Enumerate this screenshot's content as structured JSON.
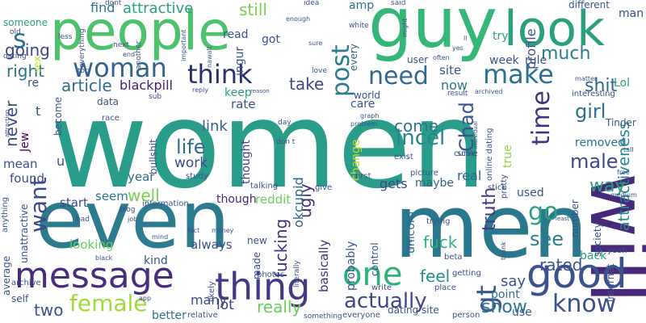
{
  "background": "#ffffff",
  "palette": {
    "purple": "#440154",
    "indigo": "#3b528b",
    "teal": "#21908d",
    "green": "#35b779",
    "lime": "#8fd744",
    "yellow": "#fde725"
  },
  "words": [
    {
      "text": "women",
      "weight": 100,
      "color": "#2a9d8a"
    },
    {
      "text": "men",
      "weight": 62,
      "color": "#2a788e"
    },
    {
      "text": "even",
      "weight": 45,
      "color": "#2c7b8e"
    },
    {
      "text": "guy",
      "weight": 36,
      "color": "#35b779"
    },
    {
      "text": "people",
      "weight": 33,
      "color": "#4cc26c"
    },
    {
      "text": "will",
      "weight": 30,
      "color": "#482878"
    },
    {
      "text": "look",
      "weight": 28,
      "color": "#2ba07f"
    },
    {
      "text": "good",
      "weight": 25,
      "color": "#3b528b"
    },
    {
      "text": "message",
      "weight": 22,
      "color": "#472d7b"
    },
    {
      "text": "thing",
      "weight": 22,
      "color": "#443983"
    },
    {
      "text": "one",
      "weight": 18,
      "color": "#2db37a"
    },
    {
      "text": "woman",
      "weight": 16,
      "color": "#33638d"
    },
    {
      "text": "think",
      "weight": 15,
      "color": "#2a2f6e"
    },
    {
      "text": "make",
      "weight": 13,
      "color": "#2c728e"
    },
    {
      "text": "need",
      "weight": 12,
      "color": "#31688e"
    },
    {
      "text": "post",
      "weight": 12,
      "color": "#287d8e"
    },
    {
      "text": "time",
      "weight": 11,
      "color": "#46327e"
    },
    {
      "text": "want",
      "weight": 11,
      "color": "#3e4a89"
    },
    {
      "text": "know",
      "weight": 11,
      "color": "#3b518b"
    },
    {
      "text": "female",
      "weight": 10,
      "color": "#a0da39"
    },
    {
      "text": "gt",
      "weight": 10,
      "color": "#39568c"
    },
    {
      "text": "go",
      "weight": 9,
      "color": "#2ba07f"
    },
    {
      "text": "actually",
      "weight": 9,
      "color": "#3f4788"
    },
    {
      "text": "incel",
      "weight": 8,
      "color": "#24868e"
    },
    {
      "text": "Chad",
      "weight": 8,
      "color": "#3b528b"
    },
    {
      "text": "life",
      "weight": 8,
      "color": "#2f6b8e"
    },
    {
      "text": "much",
      "weight": 7,
      "color": "#27808e"
    },
    {
      "text": "see",
      "weight": 7,
      "color": "#26828e"
    },
    {
      "text": "girl",
      "weight": 7,
      "color": "#2c728e"
    },
    {
      "text": "male",
      "weight": 7,
      "color": "#3e4989"
    },
    {
      "text": "shit",
      "weight": 7,
      "color": "#31688e"
    },
    {
      "text": "show",
      "weight": 7,
      "color": "#2a768e"
    },
    {
      "text": "s",
      "weight": 7,
      "color": "#2c728e"
    },
    {
      "text": "truth",
      "weight": 6,
      "color": "#443983"
    },
    {
      "text": "attractiveness",
      "weight": 6,
      "color": "#24878e"
    },
    {
      "text": "fucking",
      "weight": 6,
      "color": "#46327e"
    },
    {
      "text": "feel",
      "weight": 6,
      "color": "#21908d"
    },
    {
      "text": "come",
      "weight": 6,
      "color": "#2a788e"
    },
    {
      "text": "never",
      "weight": 6,
      "color": "#3e4a89"
    },
    {
      "text": "way",
      "weight": 6,
      "color": "#2ba07f"
    },
    {
      "text": "ugly",
      "weight": 6,
      "color": "#472d7b"
    },
    {
      "text": "okcupid",
      "weight": 6,
      "color": "#31688e"
    },
    {
      "text": "rated",
      "weight": 6,
      "color": "#3b528b"
    },
    {
      "text": "fuck",
      "weight": 6,
      "color": "#2db37a"
    },
    {
      "text": "well",
      "weight": 6,
      "color": "#7ad151"
    },
    {
      "text": "really",
      "weight": 6,
      "color": "#6ccd5a"
    },
    {
      "text": "right",
      "weight": 5,
      "color": "#2d718e"
    },
    {
      "text": "article",
      "weight": 5,
      "color": "#2f6c8e"
    },
    {
      "text": "blackpill",
      "weight": 5,
      "color": "#482173"
    },
    {
      "text": "going",
      "weight": 5,
      "color": "#3f4788"
    },
    {
      "text": "attractive",
      "weight": 5,
      "color": "#2ba07f"
    },
    {
      "text": "still",
      "weight": 5,
      "color": "#7ad151"
    },
    {
      "text": "say",
      "weight": 5,
      "color": "#3b518b"
    },
    {
      "text": "take",
      "weight": 5,
      "color": "#404688"
    },
    {
      "text": "two",
      "weight": 5,
      "color": "#3a538b"
    },
    {
      "text": "removed",
      "weight": 5,
      "color": "#2c728e"
    },
    {
      "text": "link",
      "weight": 5,
      "color": "#33638d"
    },
    {
      "text": "work",
      "weight": 5,
      "color": "#3e4a89"
    },
    {
      "text": "lot",
      "weight": 5,
      "color": "#443a83"
    },
    {
      "text": "many",
      "weight": 4,
      "color": "#3f4788"
    },
    {
      "text": "gets",
      "weight": 4,
      "color": "#3f4788"
    },
    {
      "text": "real",
      "weight": 4,
      "color": "#33638d"
    },
    {
      "text": "now",
      "weight": 4,
      "color": "#2a788e"
    },
    {
      "text": "find",
      "weight": 4,
      "color": "#2c728e"
    },
    {
      "text": "profile",
      "weight": 4,
      "color": "#3b528b"
    },
    {
      "text": "point",
      "weight": 4,
      "color": "#2c728e"
    },
    {
      "text": "looking",
      "weight": 4,
      "color": "#6ccd5a"
    },
    {
      "text": "year",
      "weight": 4,
      "color": "#306a8e"
    },
    {
      "text": "seem",
      "weight": 4,
      "color": "#2a788e"
    },
    {
      "text": "start",
      "weight": 4,
      "color": "#3e4989"
    },
    {
      "text": "always",
      "weight": 4,
      "color": "#3b528b"
    },
    {
      "text": "basically",
      "weight": 4,
      "color": "#472d7b"
    },
    {
      "text": "probably",
      "weight": 4,
      "color": "#38588c"
    },
    {
      "text": "unicorn",
      "weight": 4,
      "color": "#2c728e"
    },
    {
      "text": "reddit",
      "weight": 4,
      "color": "#6ccd5a"
    },
    {
      "text": "better",
      "weight": 4,
      "color": "#2c728e"
    },
    {
      "text": "kind",
      "weight": 4,
      "color": "#3b528b"
    },
    {
      "text": "mean",
      "weight": 4,
      "color": "#3b528b"
    },
    {
      "text": "found",
      "weight": 4,
      "color": "#3e4989"
    },
    {
      "text": "back",
      "weight": 4,
      "color": "#2ba07f"
    },
    {
      "text": "true",
      "weight": 4,
      "color": "#8fd744"
    },
    {
      "text": "site",
      "weight": 4,
      "color": "#3b528b"
    },
    {
      "text": "rate",
      "weight": 4,
      "color": "#3b528b"
    },
    {
      "text": "though",
      "weight": 4,
      "color": "#482878"
    },
    {
      "text": "thought",
      "weight": 4,
      "color": "#404688"
    },
    {
      "text": "Jew",
      "weight": 4,
      "color": "#440154"
    },
    {
      "text": "use",
      "weight": 4,
      "color": "#38588c"
    },
    {
      "text": "used",
      "weight": 4,
      "color": "#3a538b"
    },
    {
      "text": "try",
      "weight": 4,
      "color": "#2ba07f"
    },
    {
      "text": "Lol",
      "weight": 4,
      "color": "#2ba07f"
    },
    {
      "text": "rule",
      "weight": 4,
      "color": "#3b528b"
    },
    {
      "text": "week",
      "weight": 4,
      "color": "#3b528b"
    },
    {
      "text": "read",
      "weight": 4,
      "color": "#3b528b"
    },
    {
      "text": "got",
      "weight": 4,
      "color": "#3b528b"
    },
    {
      "text": "ingur",
      "weight": 4,
      "color": "#3b528b"
    },
    {
      "text": "amp",
      "weight": 4,
      "color": "#2c728e"
    },
    {
      "text": "every",
      "weight": 4,
      "color": "#33638d"
    },
    {
      "text": "maybe",
      "weight": 4,
      "color": "#33638d"
    },
    {
      "text": "change",
      "weight": 4,
      "color": "#c2df23"
    },
    {
      "text": "care",
      "weight": 4,
      "color": "#3b528b"
    },
    {
      "text": "world",
      "weight": 4,
      "color": "#3b528b"
    },
    {
      "text": "keep",
      "weight": 4,
      "color": "#2ba07f"
    },
    {
      "text": "become",
      "weight": 4,
      "color": "#3b528b"
    },
    {
      "text": "Tinder",
      "weight": 4,
      "color": "#3b528b"
    },
    {
      "text": "u",
      "weight": 4,
      "color": "#3b528b"
    },
    {
      "text": "re",
      "weight": 4,
      "color": "#3b528b"
    },
    {
      "text": "t",
      "weight": 4,
      "color": "#3b528b"
    },
    {
      "text": "sex",
      "weight": 3,
      "color": "#c2df23"
    },
    {
      "text": "someone",
      "weight": 3,
      "color": "#2ba07f"
    },
    {
      "text": "average",
      "weight": 3,
      "color": "#3b528b"
    },
    {
      "text": "unattractive",
      "weight": 3,
      "color": "#3b528b"
    },
    {
      "text": "bullshit",
      "weight": 3,
      "color": "#3b528b"
    },
    {
      "text": "user",
      "weight": 3,
      "color": "#3b528b"
    },
    {
      "text": "data",
      "weight": 3,
      "color": "#3b528b"
    },
    {
      "text": "new",
      "weight": 3,
      "color": "#3b528b"
    },
    {
      "text": "made",
      "weight": 3,
      "color": "#3b528b"
    },
    {
      "text": "control",
      "weight": 3,
      "color": "#3b528b"
    },
    {
      "text": "society",
      "weight": 3,
      "color": "#3b528b"
    },
    {
      "text": "internet",
      "weight": 3,
      "color": "#3b528b"
    },
    {
      "text": "number",
      "weight": 3,
      "color": "#3b528b"
    },
    {
      "text": "interesting",
      "weight": 3,
      "color": "#3b528b"
    },
    {
      "text": "online dating",
      "weight": 3,
      "color": "#3b528b"
    },
    {
      "text": "dating site",
      "weight": 3,
      "color": "#3b528b"
    },
    {
      "text": "curve",
      "weight": 3,
      "color": "#3b528b"
    },
    {
      "text": "information",
      "weight": 3,
      "color": "#3b528b"
    },
    {
      "text": "trying",
      "weight": 3,
      "color": "#3b528b"
    },
    {
      "text": "different",
      "weight": 3,
      "color": "#3b528b"
    },
    {
      "text": "man",
      "weight": 3,
      "color": "#3b528b"
    },
    {
      "text": "yeah",
      "weight": 3,
      "color": "#3b528b"
    },
    {
      "text": "self",
      "weight": 3,
      "color": "#3b528b"
    },
    {
      "text": "anything",
      "weight": 3,
      "color": "#3b528b"
    },
    {
      "text": "archive",
      "weight": 3,
      "color": "#3b528b"
    },
    {
      "text": "beta",
      "weight": 3,
      "color": "#3b528b"
    },
    {
      "text": "write",
      "weight": 3,
      "color": "#3b528b"
    },
    {
      "text": "place",
      "weight": 3,
      "color": "#3b528b"
    },
    {
      "text": "getting",
      "weight": 3,
      "color": "#3b528b"
    },
    {
      "text": "person",
      "weight": 3,
      "color": "#3b528b"
    },
    {
      "text": "everyone",
      "weight": 3,
      "color": "#3b528b"
    },
    {
      "text": "something",
      "weight": 3,
      "color": "#3b528b"
    },
    {
      "text": "relative",
      "weight": 3,
      "color": "#3b528b"
    },
    {
      "text": "photos",
      "weight": 3,
      "color": "#3b528b"
    },
    {
      "text": "literally",
      "weight": 3,
      "color": "#3b528b"
    },
    {
      "text": "likely",
      "weight": 3,
      "color": "#3b528b"
    },
    {
      "text": "talking",
      "weight": 3,
      "color": "#3b528b"
    },
    {
      "text": "give",
      "weight": 3,
      "color": "#3b528b"
    },
    {
      "text": "stick",
      "weight": 3,
      "color": "#3b528b"
    },
    {
      "text": "pretty",
      "weight": 3,
      "color": "#3b528b"
    },
    {
      "text": "scale",
      "weight": 3,
      "color": "#3b528b"
    },
    {
      "text": "exist",
      "weight": 3,
      "color": "#3b528b"
    },
    {
      "text": "picture",
      "weight": 3,
      "color": "#3b528b"
    },
    {
      "text": "first",
      "weight": 3,
      "color": "#3b528b"
    },
    {
      "text": "study",
      "weight": 3,
      "color": "#3b528b"
    },
    {
      "text": "dont",
      "weight": 2,
      "color": "#3b528b"
    },
    {
      "text": "don t",
      "weight": 2,
      "color": "#3b528b"
    },
    {
      "text": "day",
      "weight": 2,
      "color": "#3b528b"
    },
    {
      "text": "race",
      "weight": 2,
      "color": "#3b528b"
    },
    {
      "text": "sub",
      "weight": 2,
      "color": "#3b528b"
    },
    {
      "text": "top",
      "weight": 2,
      "color": "#3b528b"
    },
    {
      "text": "next",
      "weight": 2,
      "color": "#3b528b"
    },
    {
      "text": "old",
      "weight": 2,
      "color": "#3b528b"
    },
    {
      "text": "dating",
      "weight": 2,
      "color": "#3b528b"
    },
    {
      "text": "less",
      "weight": 2,
      "color": "#3b528b"
    },
    {
      "text": "everything",
      "weight": 2,
      "color": "#3b528b"
    },
    {
      "text": "important",
      "weight": 2,
      "color": "#3b528b"
    },
    {
      "text": "another",
      "weight": 2,
      "color": "#3b528b"
    },
    {
      "text": "nawalt",
      "weight": 2,
      "color": "#3b528b"
    },
    {
      "text": "idea",
      "weight": 2,
      "color": "#3b528b"
    },
    {
      "text": "love",
      "weight": 2,
      "color": "#3b528b"
    },
    {
      "text": "enough",
      "weight": 2,
      "color": "#3b528b"
    },
    {
      "text": "said",
      "weight": 2,
      "color": "#3b528b"
    },
    {
      "text": "white",
      "weight": 2,
      "color": "#3b528b"
    },
    {
      "text": "might",
      "weight": 2,
      "color": "#3b528b"
    },
    {
      "text": "sure",
      "weight": 2,
      "color": "#3b528b"
    },
    {
      "text": "ll",
      "weight": 2,
      "color": "#3b528b"
    },
    {
      "text": "yes",
      "weight": 2,
      "color": "#3b528b"
    },
    {
      "text": "often",
      "weight": 2,
      "color": "#3b528b"
    },
    {
      "text": "matter",
      "weight": 2,
      "color": "#3b528b"
    },
    {
      "text": "result",
      "weight": 2,
      "color": "#3b528b"
    },
    {
      "text": "archived",
      "weight": 2,
      "color": "#3b528b"
    },
    {
      "text": "reply",
      "weight": 2,
      "color": "#3b528b"
    },
    {
      "text": "reason",
      "weight": 2,
      "color": "#3b528b"
    },
    {
      "text": "problem",
      "weight": 2,
      "color": "#3b528b"
    },
    {
      "text": "graph",
      "weight": 2,
      "color": "#3b528b"
    },
    {
      "text": "individual",
      "weight": 2,
      "color": "#3b528b"
    },
    {
      "text": "attraction",
      "weight": 2,
      "color": "#3b528b"
    },
    {
      "text": "blog",
      "weight": 2,
      "color": "#3b528b"
    },
    {
      "text": "job",
      "weight": 2,
      "color": "#3b528b"
    },
    {
      "text": "bad",
      "weight": 2,
      "color": "#3b528b"
    },
    {
      "text": "mind",
      "weight": 2,
      "color": "#3b528b"
    },
    {
      "text": "fact",
      "weight": 2,
      "color": "#3b528b"
    },
    {
      "text": "money",
      "weight": 2,
      "color": "#3b528b"
    },
    {
      "text": "black",
      "weight": 2,
      "color": "#3b528b"
    },
    {
      "text": "app",
      "weight": 2,
      "color": "#3b528b"
    },
    {
      "text": "free",
      "weight": 2,
      "color": "#3b528b"
    },
    {
      "text": "tall",
      "weight": 2,
      "color": "#3b528b"
    },
    {
      "text": "least",
      "weight": 2,
      "color": "#3b528b"
    },
    {
      "text": "medium",
      "weight": 2,
      "color": "#3b528b"
    },
    {
      "text": "thank",
      "weight": 2,
      "color": "#3b528b"
    },
    {
      "text": "live",
      "weight": 2,
      "color": "#3b528b"
    },
    {
      "text": "end",
      "weight": 2,
      "color": "#3b528b"
    }
  ]
}
